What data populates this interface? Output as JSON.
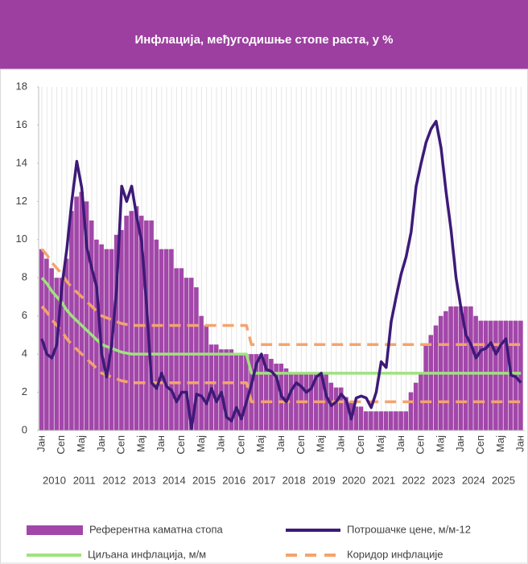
{
  "chart_data": {
    "type": "combo",
    "title": "Инфлација, међугодишње стопе раста, у %",
    "categories": [
      "Јан",
      null,
      null,
      null,
      "Сеп",
      null,
      null,
      null,
      "Мај",
      null,
      null,
      null,
      "Јан",
      null,
      null,
      null,
      "Сеп",
      null,
      null,
      null,
      "Мај",
      null,
      null,
      null,
      "Јан",
      null,
      null,
      null,
      "Сеп",
      null,
      null,
      null,
      "Мај",
      null,
      null,
      null,
      "Јан",
      null,
      null,
      null,
      "Сеп",
      null,
      null,
      null,
      "Мај",
      null,
      null,
      null,
      "Јан",
      null,
      null,
      null,
      "Сеп",
      null,
      null,
      null,
      "Мај",
      null,
      null,
      null,
      "Јан",
      null,
      null,
      null,
      "Сеп",
      null,
      null,
      null,
      "Мај",
      null,
      null,
      null,
      "Јан",
      null,
      null,
      null,
      "Сеп",
      null,
      null,
      null,
      "Мај",
      null,
      null,
      null,
      "Јан",
      null,
      null,
      null,
      "Сеп",
      null,
      null,
      null,
      "Мај",
      null,
      null,
      null,
      "Јан"
    ],
    "year_labels": [
      2010,
      2011,
      2012,
      2013,
      2014,
      2015,
      2016,
      2017,
      2018,
      2019,
      2020,
      2021,
      2022,
      2023,
      2024,
      2025
    ],
    "series": [
      {
        "name": "Референтна каматна стопа",
        "kind": "area",
        "color": "#a247a9",
        "values": [
          9.5,
          9,
          8.5,
          8,
          8,
          9,
          11.5,
          12.25,
          12.5,
          12,
          11,
          10,
          9.75,
          9.5,
          9.5,
          10.25,
          10.5,
          11.25,
          11.5,
          11.75,
          11.25,
          11,
          11,
          10,
          9.5,
          9.5,
          9.5,
          8.5,
          8.5,
          8,
          8,
          7.5,
          6,
          5.5,
          4.5,
          4.5,
          4.25,
          4.25,
          4.25,
          4,
          4,
          4,
          4,
          4,
          4,
          4,
          3.75,
          3.5,
          3.5,
          3.25,
          3,
          3,
          3,
          3,
          3,
          3,
          3,
          3,
          2.5,
          2.25,
          2.25,
          1.75,
          1.5,
          1.25,
          1.25,
          1,
          1,
          1,
          1,
          1,
          1,
          1,
          1,
          1,
          2,
          2.5,
          3,
          4.5,
          5,
          5.5,
          6,
          6.25,
          6.5,
          6.5,
          6.5,
          6.5,
          6.5,
          6,
          5.75,
          5.75,
          5.75,
          5.75,
          5.75,
          5.75,
          5.75,
          5.75,
          5.75
        ]
      },
      {
        "name": "Потрошачке цене, м/м-12",
        "kind": "line",
        "color": "#3d1a78",
        "values": [
          4.8,
          4,
          3.8,
          4.5,
          7.5,
          9.5,
          12,
          14.1,
          12.7,
          9.6,
          8.5,
          7.5,
          4,
          2.8,
          4.5,
          7.5,
          12.8,
          12,
          12.8,
          11.2,
          9.9,
          6.5,
          2.5,
          2.2,
          3,
          2.3,
          2.1,
          1.5,
          2,
          2,
          0.1,
          1.9,
          1.8,
          1.4,
          2.2,
          1.5,
          2,
          0.7,
          0.5,
          1.2,
          0.6,
          1.5,
          2.4,
          3.5,
          4,
          3.2,
          3.1,
          2.8,
          1.8,
          1.5,
          2.1,
          2.5,
          2.3,
          2,
          2.2,
          2.8,
          3,
          1.8,
          1.3,
          1.5,
          1.9,
          1.6,
          0.6,
          1.7,
          1.8,
          1.7,
          1.2,
          2,
          3.6,
          3.3,
          5.7,
          7,
          8.2,
          9.1,
          10.4,
          12.8,
          14,
          15.1,
          15.8,
          16.2,
          14.8,
          12.5,
          10.5,
          8,
          6.4,
          5,
          4.5,
          3.8,
          4.2,
          4.3,
          4.6,
          4,
          4.5,
          4.8,
          2.9,
          2.8,
          2.5
        ]
      },
      {
        "name": "Циљана инфлација, м/м",
        "kind": "line",
        "color": "#9fe27e",
        "values": [
          8,
          7.7,
          7.3,
          7,
          6.7,
          6.3,
          6,
          5.75,
          5.5,
          5.25,
          5,
          4.75,
          4.5,
          4.4,
          4.3,
          4.2,
          4.1,
          4.05,
          4,
          4,
          4,
          4,
          4,
          4,
          4,
          4,
          4,
          4,
          4,
          4,
          4,
          4,
          4,
          4,
          4,
          4,
          4,
          4,
          4,
          4,
          4,
          4,
          3,
          3,
          3,
          3,
          3,
          3,
          3,
          3,
          3,
          3,
          3,
          3,
          3,
          3,
          3,
          3,
          3,
          3,
          3,
          3,
          3,
          3,
          3,
          3,
          3,
          3,
          3,
          3,
          3,
          3,
          3,
          3,
          3,
          3,
          3,
          3,
          3,
          3,
          3,
          3,
          3,
          3,
          3,
          3,
          3,
          3,
          3,
          3,
          3,
          3,
          3,
          3,
          3,
          3,
          3
        ]
      },
      {
        "name": "Коридор инфлације",
        "kind": "band",
        "color": "#f4a46c",
        "dashed": true,
        "values": [
          9.5,
          9.2,
          8.8,
          8.5,
          8.2,
          7.8,
          7.5,
          7.25,
          7,
          6.75,
          6.5,
          6.25,
          6,
          5.9,
          5.8,
          5.7,
          5.6,
          5.55,
          5.5,
          5.5,
          5.5,
          5.5,
          5.5,
          5.5,
          5.5,
          5.5,
          5.5,
          5.5,
          5.5,
          5.5,
          5.5,
          5.5,
          5.5,
          5.5,
          5.5,
          5.5,
          5.5,
          5.5,
          5.5,
          5.5,
          5.5,
          5.5,
          4.5,
          4.5,
          4.5,
          4.5,
          4.5,
          4.5,
          4.5,
          4.5,
          4.5,
          4.5,
          4.5,
          4.5,
          4.5,
          4.5,
          4.5,
          4.5,
          4.5,
          4.5,
          4.5,
          4.5,
          4.5,
          4.5,
          4.5,
          4.5,
          4.5,
          4.5,
          4.5,
          4.5,
          4.5,
          4.5,
          4.5,
          4.5,
          4.5,
          4.5,
          4.5,
          4.5,
          4.5,
          4.5,
          4.5,
          4.5,
          4.5,
          4.5,
          4.5,
          4.5,
          4.5,
          4.5,
          4.5,
          4.5,
          4.5,
          4.5,
          4.5,
          4.5,
          4.5,
          4.5,
          4.5
        ],
        "lower_values": [
          6.5,
          6.2,
          5.8,
          5.5,
          5.2,
          4.8,
          4.5,
          4.25,
          4,
          3.75,
          3.5,
          3.25,
          3,
          2.9,
          2.8,
          2.7,
          2.6,
          2.55,
          2.5,
          2.5,
          2.5,
          2.5,
          2.5,
          2.5,
          2.5,
          2.5,
          2.5,
          2.5,
          2.5,
          2.5,
          2.5,
          2.5,
          2.5,
          2.5,
          2.5,
          2.5,
          2.5,
          2.5,
          2.5,
          2.5,
          2.5,
          2.5,
          1.5,
          1.5,
          1.5,
          1.5,
          1.5,
          1.5,
          1.5,
          1.5,
          1.5,
          1.5,
          1.5,
          1.5,
          1.5,
          1.5,
          1.5,
          1.5,
          1.5,
          1.5,
          1.5,
          1.5,
          1.5,
          1.5,
          1.5,
          1.5,
          1.5,
          1.5,
          1.5,
          1.5,
          1.5,
          1.5,
          1.5,
          1.5,
          1.5,
          1.5,
          1.5,
          1.5,
          1.5,
          1.5,
          1.5,
          1.5,
          1.5,
          1.5,
          1.5,
          1.5,
          1.5,
          1.5,
          1.5,
          1.5,
          1.5,
          1.5,
          1.5,
          1.5,
          1.5,
          1.5,
          1.5
        ]
      }
    ],
    "ylim": [
      0,
      18
    ],
    "yticks": [
      0,
      2,
      4,
      6,
      8,
      10,
      12,
      14,
      16,
      18
    ],
    "grid": true,
    "legend": "bottom"
  }
}
